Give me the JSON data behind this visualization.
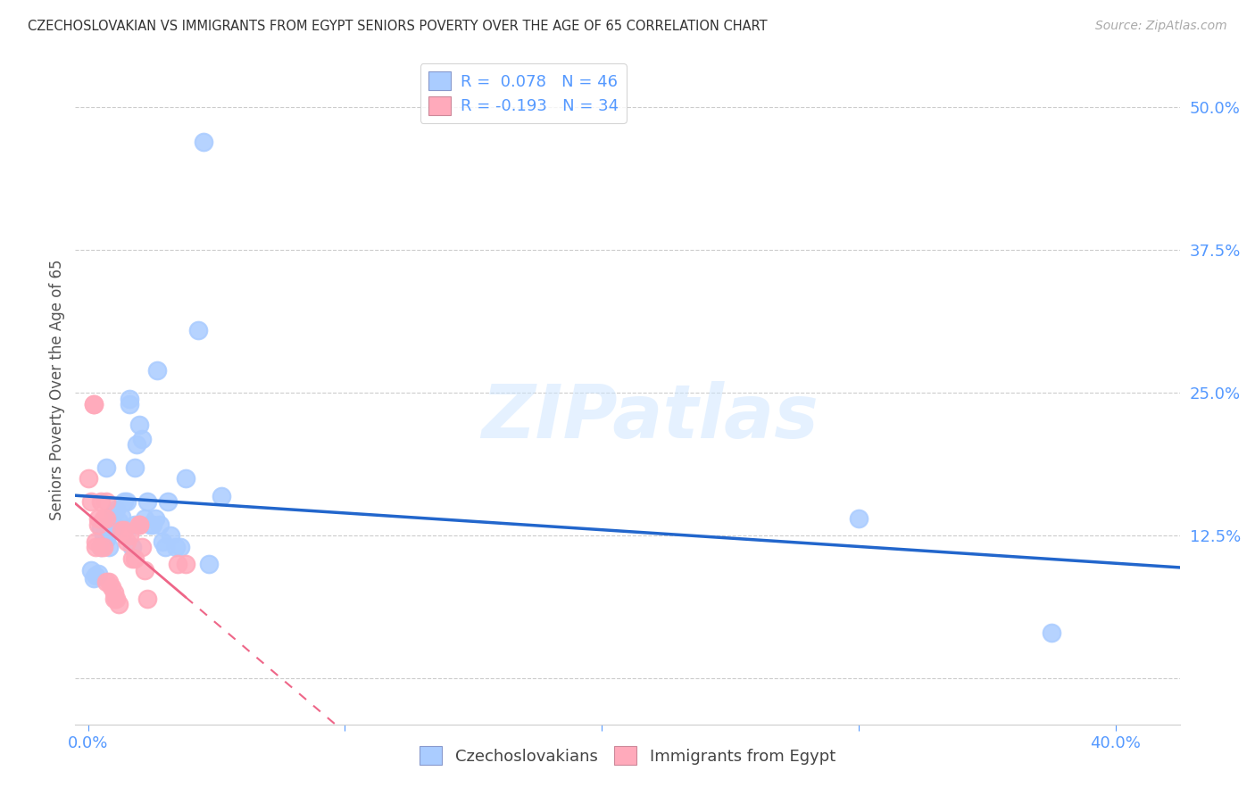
{
  "title": "CZECHOSLOVAKIAN VS IMMIGRANTS FROM EGYPT SENIORS POVERTY OVER THE AGE OF 65 CORRELATION CHART",
  "source": "Source: ZipAtlas.com",
  "ylabel": "Seniors Poverty Over the Age of 65",
  "x_ticks": [
    0.0,
    0.1,
    0.2,
    0.3,
    0.4
  ],
  "y_ticks": [
    0.0,
    0.125,
    0.25,
    0.375,
    0.5
  ],
  "y_tick_labels": [
    "",
    "12.5%",
    "25.0%",
    "37.5%",
    "50.0%"
  ],
  "xlim": [
    -0.005,
    0.425
  ],
  "ylim": [
    -0.04,
    0.545
  ],
  "blue_R": 0.078,
  "blue_N": 46,
  "pink_R": -0.193,
  "pink_N": 34,
  "blue_label": "Czechoslovakians",
  "pink_label": "Immigrants from Egypt",
  "watermark": "ZIPatlas",
  "background_color": "#ffffff",
  "grid_color": "#cccccc",
  "title_color": "#333333",
  "source_color": "#aaaaaa",
  "tick_color": "#5599ff",
  "blue_scatter_color": "#aaccff",
  "pink_scatter_color": "#ffaabb",
  "blue_line_color": "#2266cc",
  "pink_line_color": "#ee6688",
  "blue_scatter": [
    [
      0.001,
      0.095
    ],
    [
      0.002,
      0.088
    ],
    [
      0.003,
      0.09
    ],
    [
      0.004,
      0.092
    ],
    [
      0.005,
      0.115
    ],
    [
      0.005,
      0.132
    ],
    [
      0.006,
      0.125
    ],
    [
      0.007,
      0.122
    ],
    [
      0.007,
      0.185
    ],
    [
      0.008,
      0.115
    ],
    [
      0.009,
      0.135
    ],
    [
      0.01,
      0.132
    ],
    [
      0.01,
      0.145
    ],
    [
      0.011,
      0.148
    ],
    [
      0.012,
      0.138
    ],
    [
      0.013,
      0.142
    ],
    [
      0.014,
      0.155
    ],
    [
      0.015,
      0.155
    ],
    [
      0.016,
      0.245
    ],
    [
      0.016,
      0.24
    ],
    [
      0.017,
      0.115
    ],
    [
      0.018,
      0.185
    ],
    [
      0.018,
      0.135
    ],
    [
      0.019,
      0.205
    ],
    [
      0.02,
      0.222
    ],
    [
      0.021,
      0.21
    ],
    [
      0.022,
      0.14
    ],
    [
      0.023,
      0.155
    ],
    [
      0.024,
      0.135
    ],
    [
      0.025,
      0.135
    ],
    [
      0.026,
      0.14
    ],
    [
      0.027,
      0.27
    ],
    [
      0.028,
      0.135
    ],
    [
      0.029,
      0.12
    ],
    [
      0.03,
      0.115
    ],
    [
      0.031,
      0.155
    ],
    [
      0.032,
      0.125
    ],
    [
      0.034,
      0.115
    ],
    [
      0.036,
      0.115
    ],
    [
      0.038,
      0.175
    ],
    [
      0.043,
      0.305
    ],
    [
      0.045,
      0.47
    ],
    [
      0.047,
      0.1
    ],
    [
      0.052,
      0.16
    ],
    [
      0.3,
      0.14
    ],
    [
      0.375,
      0.04
    ]
  ],
  "pink_scatter": [
    [
      0.0,
      0.175
    ],
    [
      0.001,
      0.155
    ],
    [
      0.002,
      0.24
    ],
    [
      0.002,
      0.24
    ],
    [
      0.003,
      0.12
    ],
    [
      0.003,
      0.115
    ],
    [
      0.004,
      0.14
    ],
    [
      0.004,
      0.135
    ],
    [
      0.005,
      0.115
    ],
    [
      0.005,
      0.155
    ],
    [
      0.006,
      0.115
    ],
    [
      0.006,
      0.14
    ],
    [
      0.007,
      0.155
    ],
    [
      0.007,
      0.14
    ],
    [
      0.007,
      0.085
    ],
    [
      0.008,
      0.085
    ],
    [
      0.009,
      0.08
    ],
    [
      0.01,
      0.075
    ],
    [
      0.01,
      0.07
    ],
    [
      0.011,
      0.07
    ],
    [
      0.012,
      0.065
    ],
    [
      0.013,
      0.13
    ],
    [
      0.014,
      0.13
    ],
    [
      0.015,
      0.12
    ],
    [
      0.016,
      0.125
    ],
    [
      0.017,
      0.105
    ],
    [
      0.018,
      0.105
    ],
    [
      0.02,
      0.135
    ],
    [
      0.02,
      0.135
    ],
    [
      0.021,
      0.115
    ],
    [
      0.022,
      0.095
    ],
    [
      0.023,
      0.07
    ],
    [
      0.035,
      0.1
    ],
    [
      0.038,
      0.1
    ]
  ]
}
